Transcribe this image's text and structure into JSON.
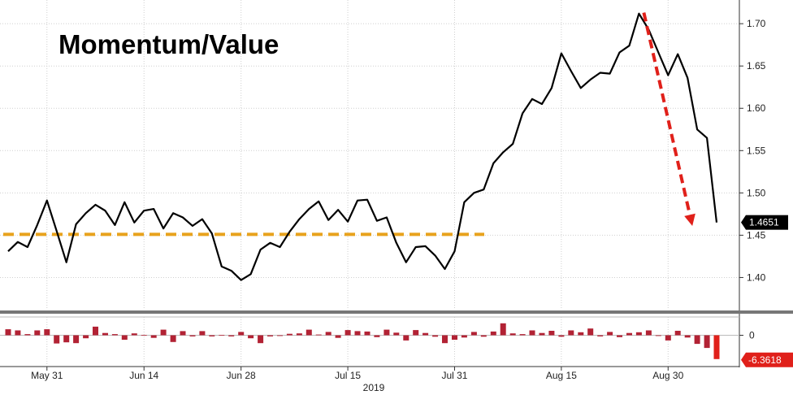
{
  "chart_data": [
    {
      "type": "line",
      "title": "Momentum/Value",
      "xlabel": "2019",
      "ylabel": "",
      "ylim": [
        1.362,
        1.728
      ],
      "ytick_labels": [
        "1.70",
        "1.65",
        "1.60",
        "1.55",
        "1.50",
        "1.45",
        "1.40"
      ],
      "ytick_values": [
        1.7,
        1.65,
        1.6,
        1.55,
        1.5,
        1.45,
        1.4
      ],
      "xtick_labels": [
        "May 31",
        "Jun 14",
        "Jun 28",
        "Jul 15",
        "Jul 31",
        "Aug 15",
        "Aug 30"
      ],
      "xtick_index": [
        4,
        14,
        24,
        35,
        46,
        57,
        68
      ],
      "grid": true,
      "last_value_label": "1.4651",
      "series": [
        {
          "values": [
            1.431,
            1.442,
            1.436,
            1.462,
            1.491,
            1.455,
            1.418,
            1.463,
            1.476,
            1.486,
            1.479,
            1.462,
            1.489,
            1.465,
            1.479,
            1.481,
            1.458,
            1.476,
            1.471,
            1.461,
            1.469,
            1.452,
            1.413,
            1.408,
            1.397,
            1.404,
            1.433,
            1.441,
            1.436,
            1.454,
            1.469,
            1.481,
            1.49,
            1.468,
            1.48,
            1.466,
            1.491,
            1.492,
            1.467,
            1.471,
            1.441,
            1.418,
            1.436,
            1.437,
            1.426,
            1.41,
            1.431,
            1.489,
            1.5,
            1.504,
            1.535,
            1.548,
            1.558,
            1.594,
            1.611,
            1.605,
            1.624,
            1.665,
            1.644,
            1.624,
            1.634,
            1.642,
            1.641,
            1.666,
            1.674,
            1.712,
            1.693,
            1.666,
            1.639,
            1.664,
            1.636,
            1.575,
            1.565,
            1.4651
          ]
        }
      ],
      "reference_line": {
        "value": 1.451,
        "color": "#e8a21c"
      },
      "annotation_arrow": {
        "from": [
          65.5,
          1.713
        ],
        "to": [
          70.5,
          1.461
        ],
        "color": "#e0201a"
      },
      "line_color": "#000000"
    },
    {
      "type": "bar",
      "title": "",
      "ytick_labels": [
        "0"
      ],
      "ylim": [
        -6.4,
        3.0
      ],
      "last_value_label": "-6.3618",
      "values": [
        1.6,
        1.3,
        0.3,
        1.3,
        1.6,
        -2.2,
        -1.9,
        -2.1,
        -0.8,
        2.3,
        0.6,
        0.3,
        -1.2,
        0.5,
        0.1,
        -0.7,
        1.5,
        -1.8,
        1.1,
        -0.3,
        1.1,
        -0.3,
        0.1,
        -0.3,
        0.9,
        -0.8,
        -2.1,
        -0.3,
        -0.2,
        0.4,
        0.5,
        1.5,
        0.2,
        0.9,
        -0.7,
        1.4,
        1.1,
        1.0,
        -0.5,
        1.5,
        0.7,
        -1.4,
        1.4,
        0.6,
        -0.4,
        -2.1,
        -1.2,
        -0.6,
        0.9,
        -0.4,
        1.0,
        3.2,
        0.5,
        0.3,
        1.3,
        0.6,
        1.2,
        -0.4,
        1.3,
        0.8,
        1.8,
        -0.3,
        0.9,
        -0.5,
        0.6,
        0.8,
        1.3,
        -0.2,
        -1.4,
        1.2,
        -0.6,
        -2.3,
        -3.4,
        -6.3618
      ],
      "color": "#b22234",
      "last_label_color": "#e0201a"
    }
  ]
}
